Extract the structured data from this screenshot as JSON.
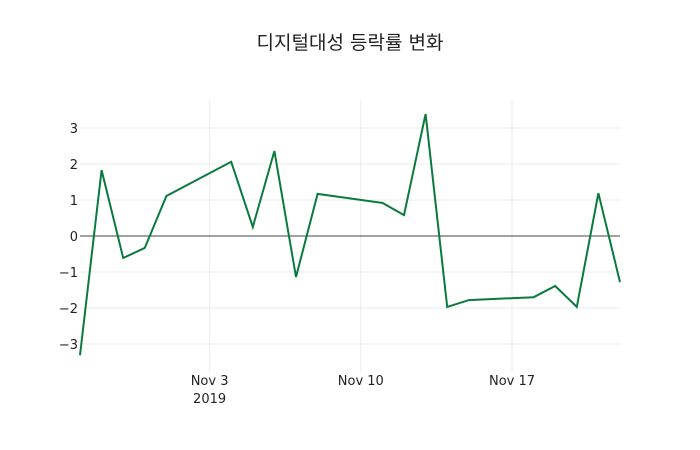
{
  "chart_data": {
    "type": "line",
    "title": "디지털대성 등락률 변화",
    "xlabel": "",
    "ylabel": "",
    "x": [
      "2019-10-28",
      "2019-10-29",
      "2019-10-30",
      "2019-10-31",
      "2019-11-01",
      "2019-11-04",
      "2019-11-05",
      "2019-11-06",
      "2019-11-07",
      "2019-11-08",
      "2019-11-11",
      "2019-11-12",
      "2019-11-13",
      "2019-11-14",
      "2019-11-15",
      "2019-11-18",
      "2019-11-19",
      "2019-11-20",
      "2019-11-21",
      "2019-11-22"
    ],
    "series": [
      {
        "name": "등락률",
        "color": "#0a7a3e",
        "values": [
          -3.31,
          1.83,
          -0.61,
          -0.33,
          1.11,
          2.06,
          0.25,
          2.36,
          -1.14,
          1.17,
          0.92,
          0.58,
          3.39,
          -1.97,
          -1.78,
          -1.7,
          -1.39,
          -1.97,
          1.19,
          -1.28
        ]
      }
    ],
    "yticks": [
      -3,
      -2,
      -1,
      0,
      1,
      2,
      3
    ],
    "xticks": [
      {
        "date": "2019-11-03",
        "label": "Nov 3",
        "sublabel": "2019"
      },
      {
        "date": "2019-11-10",
        "label": "Nov 10",
        "sublabel": ""
      },
      {
        "date": "2019-11-17",
        "label": "Nov 17",
        "sublabel": ""
      }
    ],
    "xlim": [
      "2019-10-28",
      "2019-11-22"
    ],
    "ylim": [
      -3.31,
      3.39
    ],
    "grid": true,
    "legend": "none"
  }
}
